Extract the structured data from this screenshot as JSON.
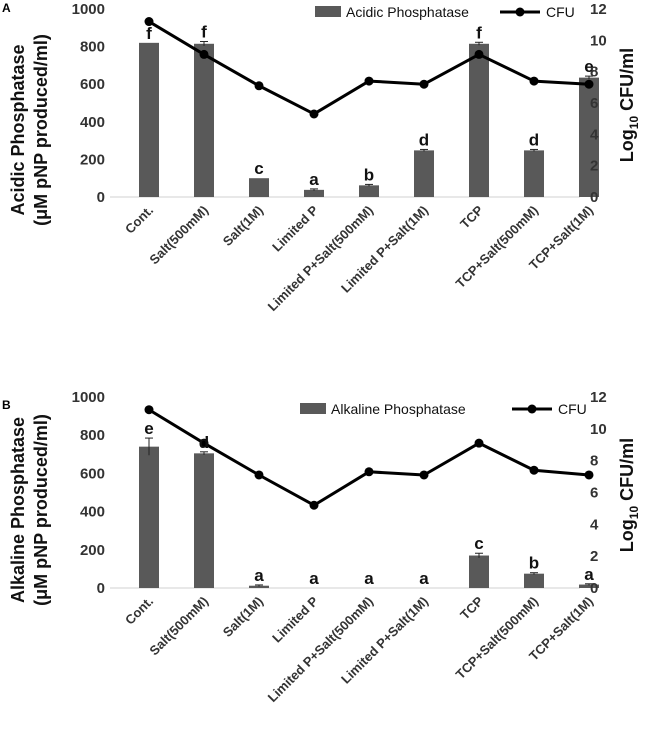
{
  "chart_data": [
    {
      "type": "bar",
      "panel": "A",
      "categories": [
        "Cont.",
        "Salt(500mM)",
        "Salt(1M)",
        "Limited P",
        "Limited P+Salt(500mM)",
        "Limited P+Salt(1M)",
        "TCP",
        "TCP+Salt(500mM)",
        "TCP+Salt(1M)"
      ],
      "series": [
        {
          "name": "Acidic Phosphatase",
          "kind": "bar",
          "axis": "left",
          "values": [
            820,
            815,
            100,
            38,
            62,
            248,
            815,
            248,
            635
          ],
          "errors": [
            0,
            12,
            0,
            5,
            5,
            5,
            8,
            5,
            8
          ],
          "labels": [
            "f",
            "f",
            "c",
            "a",
            "b",
            "d",
            "f",
            "d",
            "e"
          ]
        },
        {
          "name": "CFU",
          "kind": "line",
          "axis": "right",
          "values": [
            11.2,
            9.1,
            7.1,
            5.3,
            7.4,
            7.2,
            9.1,
            7.4,
            7.2
          ]
        }
      ],
      "ylabel_line1": "Acidic Phosphatase",
      "ylabel_line2": "(μM pNP produced/ml)",
      "y2label": {
        "pre": "Log",
        "sub": "10",
        "post": " CFU/ml"
      },
      "ylim": [
        0,
        1000
      ],
      "yticks": [
        "0",
        "200",
        "400",
        "600",
        "800",
        "1000"
      ],
      "y2lim": [
        0,
        12
      ],
      "y2ticks": [
        "0",
        "2",
        "4",
        "6",
        "8",
        "10",
        "12"
      ],
      "legend": [
        "Acidic Phosphatase",
        "CFU"
      ]
    },
    {
      "type": "bar",
      "panel": "B",
      "categories": [
        "Cont.",
        "Salt(500mM)",
        "Salt(1M)",
        "Limited P",
        "Limited P+Salt(500mM)",
        "Limited P+Salt(1M)",
        "TCP",
        "TCP+Salt(500mM)",
        "TCP+Salt(1M)"
      ],
      "series": [
        {
          "name": "Alkaline Phosphatase",
          "kind": "bar",
          "axis": "left",
          "values": [
            740,
            705,
            12,
            0,
            0,
            0,
            170,
            75,
            18
          ],
          "errors": [
            45,
            8,
            4,
            0,
            0,
            0,
            12,
            5,
            4
          ],
          "labels": [
            "e",
            "d",
            "a",
            "a",
            "a",
            "a",
            "c",
            "b",
            "a"
          ]
        },
        {
          "name": "CFU",
          "kind": "line",
          "axis": "right",
          "values": [
            11.2,
            9.1,
            7.1,
            5.2,
            7.3,
            7.1,
            9.1,
            7.4,
            7.1
          ]
        }
      ],
      "ylabel_line1": "Alkaline Phosphatase",
      "ylabel_line2": "(μM pNP produced/ml)",
      "y2label": {
        "pre": "Log",
        "sub": "10",
        "post": " CFU/ml"
      },
      "ylim": [
        0,
        1000
      ],
      "yticks": [
        "0",
        "200",
        "400",
        "600",
        "800",
        "1000"
      ],
      "y2lim": [
        0,
        12
      ],
      "y2ticks": [
        "0",
        "2",
        "4",
        "6",
        "8",
        "10",
        "12"
      ],
      "legend": [
        "Alkaline Phosphatase",
        "CFU"
      ]
    }
  ],
  "colors": {
    "bar": "#595959",
    "line": "#000000",
    "text": "#333333"
  }
}
